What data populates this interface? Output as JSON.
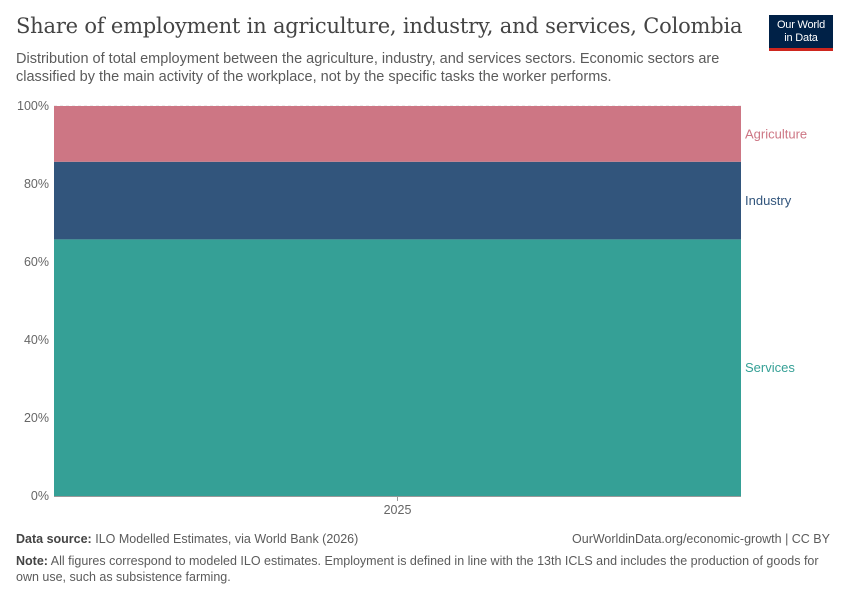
{
  "title": "Share of employment in agriculture, industry, and services, Colombia",
  "subtitle": "Distribution of total employment between the agriculture, industry, and services sectors. Economic sectors are classified by the main activity of the workplace, not by the specific tasks the worker performs.",
  "logo": {
    "line1": "Our World",
    "line2": "in Data"
  },
  "footer": {
    "source_label": "Data source:",
    "source_text": "ILO Modelled Estimates, via World Bank (2026)",
    "url": "OurWorldinData.org/economic-growth | CC BY",
    "note_label": "Note:",
    "note_text": "All figures correspond to modeled ILO estimates. Employment is defined in line with the 13th ICLS and includes the production of goods for own use, such as subsistence farming."
  },
  "chart_data": {
    "type": "bar",
    "stacked": true,
    "categories": [
      "2025"
    ],
    "ylim": [
      0,
      100
    ],
    "yticks": [
      0,
      20,
      40,
      60,
      80,
      100
    ],
    "ytick_labels": [
      "0%",
      "20%",
      "40%",
      "60%",
      "80%",
      "100%"
    ],
    "grid": true,
    "series": [
      {
        "name": "Services",
        "values": [
          65.8
        ],
        "color": "#35a096"
      },
      {
        "name": "Industry",
        "values": [
          19.9
        ],
        "color": "#32557c"
      },
      {
        "name": "Agriculture",
        "values": [
          14.3
        ],
        "color": "#cd7684"
      }
    ],
    "legend_position": "right"
  }
}
